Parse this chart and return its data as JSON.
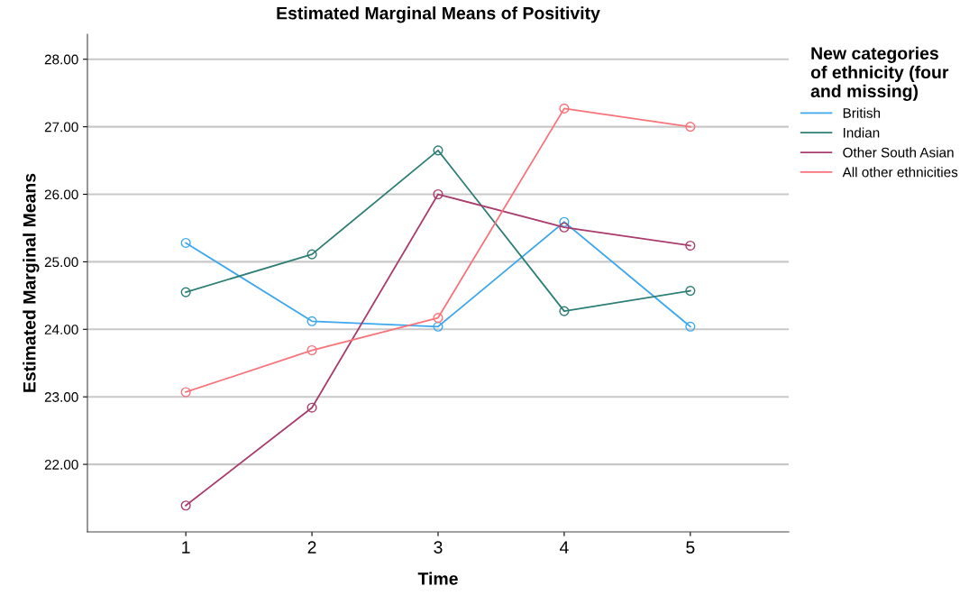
{
  "chart_data": {
    "type": "line",
    "title": "Estimated Marginal Means of Positivity",
    "xlabel": "Time",
    "ylabel": "Estimated Marginal Means",
    "legend_title": "New categories\nof ethnicity (four\nand missing)",
    "x": [
      1,
      2,
      3,
      4,
      5
    ],
    "series": [
      {
        "name": "British",
        "color": "#3ea8ee",
        "values": [
          25.28,
          24.12,
          24.04,
          25.59,
          24.04
        ]
      },
      {
        "name": "Indian",
        "color": "#2e7f75",
        "values": [
          24.55,
          25.11,
          26.65,
          24.27,
          24.57
        ]
      },
      {
        "name": "Other South Asian",
        "color": "#a93d6d",
        "values": [
          21.39,
          22.84,
          26.0,
          25.51,
          25.24
        ]
      },
      {
        "name": "All other ethnicities",
        "color": "#f8737a",
        "values": [
          23.07,
          23.69,
          24.17,
          27.27,
          27.0
        ]
      }
    ],
    "xlim": [
      0.22,
      5.78
    ],
    "xticks": [
      1,
      2,
      3,
      4,
      5
    ],
    "ylim": [
      21.0,
      28.37
    ],
    "yticks": [
      {
        "value": 22,
        "label": "22.00"
      },
      {
        "value": 23,
        "label": "23.00"
      },
      {
        "value": 24,
        "label": "24.00"
      },
      {
        "value": 25,
        "label": "25.00"
      },
      {
        "value": 26,
        "label": "26.00"
      },
      {
        "value": 27,
        "label": "27.00"
      },
      {
        "value": 28,
        "label": "28.00"
      }
    ],
    "grid": "y",
    "legend": "right",
    "marker": "circle",
    "line_style": "solid"
  }
}
